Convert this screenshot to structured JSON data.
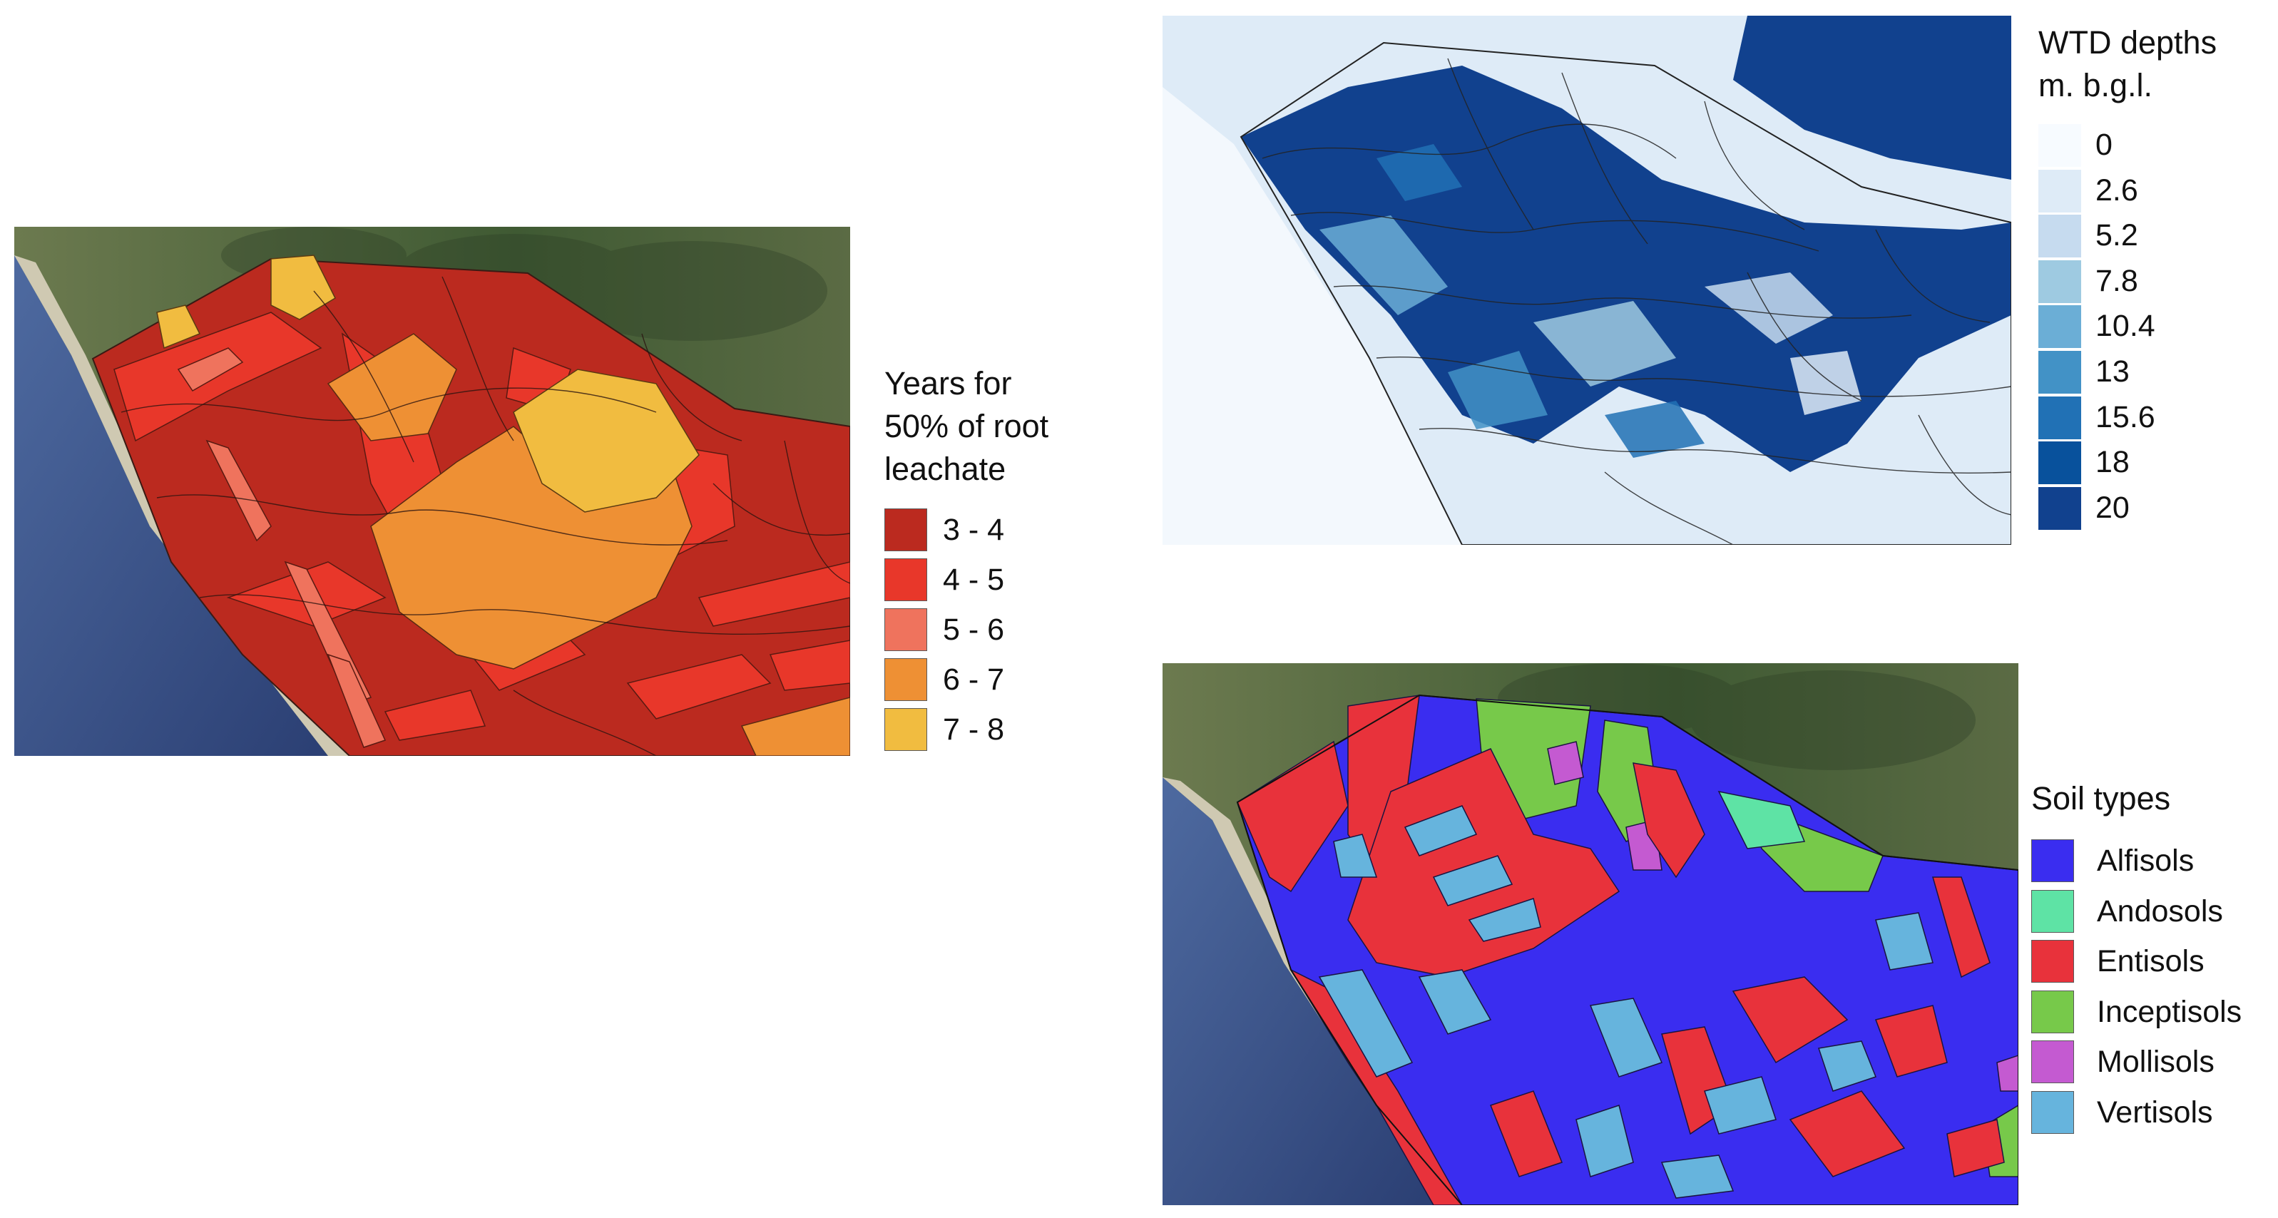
{
  "maps": {
    "leachate": {
      "legend_title_lines": [
        "Years for",
        "50% of root",
        "leachate"
      ],
      "classes": [
        {
          "label": "3 - 4",
          "color": "#bb2a1f"
        },
        {
          "label": "4 - 5",
          "color": "#e8372a"
        },
        {
          "label": "5 - 6",
          "color": "#ef735d"
        },
        {
          "label": "6 - 7",
          "color": "#ee9034"
        },
        {
          "label": "7 - 8",
          "color": "#f1bc40"
        }
      ]
    },
    "wtd": {
      "legend_title_lines": [
        "WTD depths",
        "m. b.g.l."
      ],
      "classes": [
        {
          "label": "0",
          "color": "#f7fbff"
        },
        {
          "label": "2.6",
          "color": "#deebf7"
        },
        {
          "label": "5.2",
          "color": "#c6dbef"
        },
        {
          "label": "7.8",
          "color": "#9ecae1"
        },
        {
          "label": "10.4",
          "color": "#6baed6"
        },
        {
          "label": "13",
          "color": "#4292c6"
        },
        {
          "label": "15.6",
          "color": "#2171b5"
        },
        {
          "label": "18",
          "color": "#08519c"
        },
        {
          "label": "20",
          "color": "#11418e"
        }
      ]
    },
    "soil": {
      "legend_title": "Soil types",
      "classes": [
        {
          "label": "Alfisols",
          "color": "#3a2df0"
        },
        {
          "label": "Andosols",
          "color": "#5ee3a5"
        },
        {
          "label": "Entisols",
          "color": "#e8323b"
        },
        {
          "label": "Inceptisols",
          "color": "#77c94a"
        },
        {
          "label": "Mollisols",
          "color": "#c45ad1"
        },
        {
          "label": "Vertisols",
          "color": "#66b4dd"
        }
      ]
    }
  }
}
